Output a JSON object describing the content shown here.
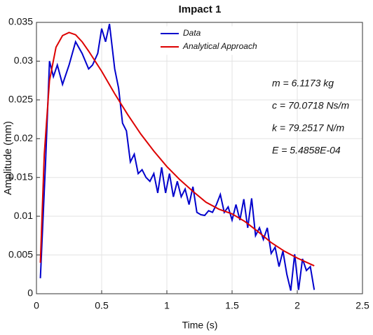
{
  "chart_data": {
    "type": "line",
    "title": "Impact 1",
    "x_label": "Time (s)",
    "y_label": "Amplitude (mm)",
    "series": [
      {
        "name": "Data",
        "color": "#0000cc",
        "x": [
          0.03,
          0.07,
          0.1,
          0.13,
          0.16,
          0.2,
          0.25,
          0.3,
          0.35,
          0.4,
          0.43,
          0.47,
          0.5,
          0.53,
          0.56,
          0.6,
          0.63,
          0.66,
          0.69,
          0.72,
          0.75,
          0.78,
          0.81,
          0.84,
          0.87,
          0.9,
          0.93,
          0.96,
          0.99,
          1.02,
          1.05,
          1.08,
          1.11,
          1.14,
          1.17,
          1.2,
          1.23,
          1.26,
          1.29,
          1.32,
          1.35,
          1.38,
          1.41,
          1.44,
          1.47,
          1.5,
          1.53,
          1.56,
          1.59,
          1.62,
          1.65,
          1.68,
          1.71,
          1.74,
          1.77,
          1.8,
          1.83,
          1.86,
          1.89,
          1.92,
          1.95,
          1.98,
          2.01,
          2.04,
          2.07,
          2.1,
          2.13
        ],
        "values": [
          0.002,
          0.017,
          0.03,
          0.028,
          0.0295,
          0.027,
          0.0295,
          0.0325,
          0.031,
          0.029,
          0.0295,
          0.031,
          0.0342,
          0.0325,
          0.0348,
          0.029,
          0.0265,
          0.022,
          0.021,
          0.017,
          0.018,
          0.0155,
          0.016,
          0.015,
          0.0145,
          0.0155,
          0.013,
          0.0163,
          0.013,
          0.0155,
          0.0125,
          0.0145,
          0.0125,
          0.0135,
          0.0115,
          0.0138,
          0.0105,
          0.0102,
          0.0101,
          0.0107,
          0.0105,
          0.0115,
          0.0128,
          0.0105,
          0.0112,
          0.0095,
          0.0115,
          0.0095,
          0.0122,
          0.0085,
          0.0123,
          0.0075,
          0.0085,
          0.007,
          0.0085,
          0.0052,
          0.006,
          0.0035,
          0.0055,
          0.0025,
          0.0004,
          0.0051,
          0.0005,
          0.0045,
          0.003,
          0.0035,
          0.0005
        ]
      },
      {
        "name": "Analytical Approach",
        "color": "#dd0000",
        "x": [
          0.03,
          0.06,
          0.1,
          0.15,
          0.2,
          0.25,
          0.3,
          0.35,
          0.4,
          0.5,
          0.6,
          0.7,
          0.8,
          0.9,
          1.0,
          1.1,
          1.2,
          1.3,
          1.4,
          1.5,
          1.6,
          1.7,
          1.8,
          1.9,
          2.0,
          2.13
        ],
        "values": [
          0.004,
          0.018,
          0.0275,
          0.0318,
          0.0333,
          0.0337,
          0.0334,
          0.0325,
          0.0313,
          0.0287,
          0.0258,
          0.0231,
          0.0206,
          0.0184,
          0.0164,
          0.0147,
          0.0132,
          0.0118,
          0.0109,
          0.0103,
          0.0093,
          0.008,
          0.0066,
          0.0055,
          0.0046,
          0.0036
        ]
      }
    ],
    "xlim": [
      0,
      2.5
    ],
    "xticks": [
      0,
      0.5,
      1,
      1.5,
      2,
      2.5
    ],
    "ylim": [
      0,
      0.035
    ],
    "yticks": [
      0,
      0.005,
      0.01,
      0.015,
      0.02,
      0.025,
      0.03,
      0.035
    ],
    "grid": true,
    "legend": "north",
    "annotations": [
      "m = 6.1173 kg",
      "c = 70.0718 Ns/m",
      "k = 79.2517 N/m",
      "E = 5.4858E-04"
    ]
  }
}
